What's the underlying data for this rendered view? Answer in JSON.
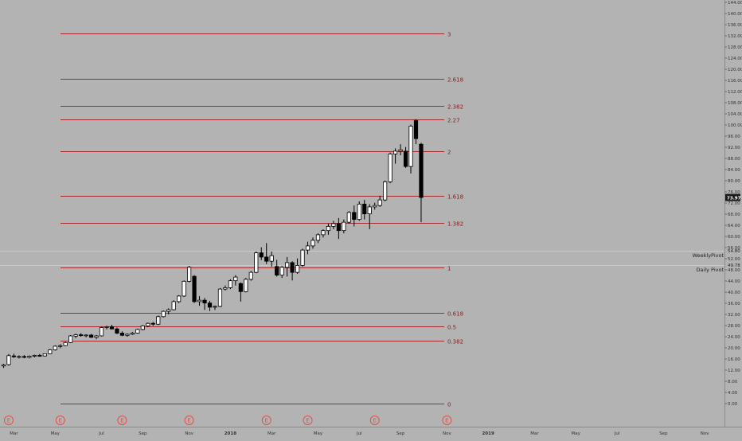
{
  "chart_data": {
    "type": "candlestick",
    "price_axis": {
      "min": 0,
      "max": 144,
      "ticks": [
        "0.00",
        "4.00",
        "8.00",
        "12.00",
        "16.00",
        "20.00",
        "24.00",
        "28.00",
        "32.00",
        "36.00",
        "40.00",
        "44.00",
        "48.00",
        "52.00",
        "56.00",
        "60.00",
        "64.00",
        "68.00",
        "72.00",
        "76.00",
        "80.00",
        "84.00",
        "88.00",
        "92.00",
        "96.00",
        "100.00",
        "104.00",
        "108.00",
        "112.00",
        "116.00",
        "120.00",
        "124.00",
        "128.00",
        "132.00",
        "136.00",
        "140.00",
        "144.00"
      ],
      "tick_values": [
        0,
        4,
        8,
        12,
        16,
        20,
        24,
        28,
        32,
        36,
        40,
        44,
        48,
        52,
        56,
        60,
        64,
        68,
        72,
        76,
        80,
        84,
        88,
        92,
        96,
        100,
        104,
        108,
        112,
        116,
        120,
        124,
        128,
        132,
        136,
        140,
        144
      ]
    },
    "time_axis": {
      "labels": [
        "Mar",
        "May",
        "Jul",
        "Sep",
        "Nov",
        "2018",
        "Mar",
        "May",
        "Jul",
        "Sep",
        "Nov",
        "2019",
        "Mar",
        "May",
        "Jul",
        "Sep",
        "Nov"
      ],
      "weeks": [
        2,
        10,
        19,
        27,
        36,
        44,
        52,
        61,
        69,
        77,
        86,
        94,
        103,
        111,
        119,
        128,
        136
      ]
    },
    "earnings_markers": {
      "label": "E",
      "weeks": [
        1,
        11,
        23,
        36,
        51,
        59,
        72,
        86
      ]
    },
    "fib_levels": [
      {
        "label": "0",
        "price": 0
      },
      {
        "label": "0.382",
        "price": 22.6
      },
      {
        "label": "0.5",
        "price": 27.6
      },
      {
        "label": "0.618",
        "price": 32.7
      },
      {
        "label": "1",
        "price": 48.8
      },
      {
        "label": "1.382",
        "price": 64.9
      },
      {
        "label": "1.618",
        "price": 74.7
      },
      {
        "label": "2",
        "price": 90.7
      },
      {
        "label": "2.27",
        "price": 101.9
      },
      {
        "label": "2.382",
        "price": 106.8
      },
      {
        "label": "2.618",
        "price": 116.7
      },
      {
        "label": "3",
        "price": 132.8
      }
    ],
    "pivots": [
      {
        "label": "WeeklyPivot",
        "value": "54.80",
        "price": 54.8
      },
      {
        "label": "Daily Pivot",
        "value": "49.78",
        "price": 49.78
      }
    ],
    "last_price": {
      "value": "73.97",
      "price": 73.97
    },
    "candles": [
      {
        "o": 13.5,
        "h": 14.3,
        "l": 12.8,
        "c": 13.9
      },
      {
        "o": 14.0,
        "h": 17.8,
        "l": 13.6,
        "c": 17.2
      },
      {
        "o": 17.1,
        "h": 17.9,
        "l": 16.4,
        "c": 16.8
      },
      {
        "o": 16.7,
        "h": 17.3,
        "l": 16.2,
        "c": 16.9
      },
      {
        "o": 16.9,
        "h": 17.4,
        "l": 16.3,
        "c": 16.6
      },
      {
        "o": 16.6,
        "h": 17.3,
        "l": 16.2,
        "c": 17.0
      },
      {
        "o": 17.0,
        "h": 17.6,
        "l": 16.6,
        "c": 17.3
      },
      {
        "o": 17.3,
        "h": 17.8,
        "l": 16.8,
        "c": 17.1
      },
      {
        "o": 17.1,
        "h": 18.0,
        "l": 16.9,
        "c": 17.9
      },
      {
        "o": 17.9,
        "h": 19.6,
        "l": 17.7,
        "c": 19.3
      },
      {
        "o": 19.3,
        "h": 20.9,
        "l": 19.0,
        "c": 20.6
      },
      {
        "o": 20.5,
        "h": 21.3,
        "l": 19.9,
        "c": 20.8
      },
      {
        "o": 20.8,
        "h": 22.2,
        "l": 20.6,
        "c": 21.9
      },
      {
        "o": 21.9,
        "h": 24.6,
        "l": 21.7,
        "c": 24.3
      },
      {
        "o": 24.2,
        "h": 25.1,
        "l": 23.5,
        "c": 24.7
      },
      {
        "o": 24.7,
        "h": 25.3,
        "l": 24.0,
        "c": 24.4
      },
      {
        "o": 24.4,
        "h": 24.9,
        "l": 23.8,
        "c": 24.6
      },
      {
        "o": 24.6,
        "h": 25.0,
        "l": 23.6,
        "c": 23.8
      },
      {
        "o": 23.8,
        "h": 24.6,
        "l": 23.1,
        "c": 24.3
      },
      {
        "o": 24.3,
        "h": 27.6,
        "l": 24.1,
        "c": 27.3
      },
      {
        "o": 27.3,
        "h": 28.0,
        "l": 26.6,
        "c": 27.6
      },
      {
        "o": 27.6,
        "h": 28.3,
        "l": 26.6,
        "c": 26.8
      },
      {
        "o": 26.8,
        "h": 27.3,
        "l": 24.9,
        "c": 25.3
      },
      {
        "o": 25.3,
        "h": 25.9,
        "l": 24.2,
        "c": 24.5
      },
      {
        "o": 24.5,
        "h": 25.2,
        "l": 24.0,
        "c": 24.9
      },
      {
        "o": 24.9,
        "h": 25.7,
        "l": 24.6,
        "c": 25.3
      },
      {
        "o": 25.3,
        "h": 26.9,
        "l": 25.1,
        "c": 26.6
      },
      {
        "o": 26.6,
        "h": 28.2,
        "l": 26.3,
        "c": 27.9
      },
      {
        "o": 27.9,
        "h": 29.1,
        "l": 27.5,
        "c": 28.8
      },
      {
        "o": 28.8,
        "h": 29.3,
        "l": 27.9,
        "c": 28.5
      },
      {
        "o": 28.5,
        "h": 31.6,
        "l": 28.2,
        "c": 31.2
      },
      {
        "o": 31.2,
        "h": 33.4,
        "l": 30.9,
        "c": 33.1
      },
      {
        "o": 33.1,
        "h": 34.2,
        "l": 32.0,
        "c": 33.7
      },
      {
        "o": 33.7,
        "h": 37.1,
        "l": 33.4,
        "c": 36.6
      },
      {
        "o": 36.6,
        "h": 38.9,
        "l": 36.1,
        "c": 38.6
      },
      {
        "o": 38.6,
        "h": 44.2,
        "l": 38.3,
        "c": 43.9
      },
      {
        "o": 43.9,
        "h": 49.4,
        "l": 43.5,
        "c": 48.9
      },
      {
        "o": 45.7,
        "h": 46.1,
        "l": 36.1,
        "c": 36.6
      },
      {
        "o": 36.6,
        "h": 38.6,
        "l": 35.1,
        "c": 37.1
      },
      {
        "o": 37.1,
        "h": 37.9,
        "l": 33.6,
        "c": 36.1
      },
      {
        "o": 36.1,
        "h": 36.9,
        "l": 33.2,
        "c": 34.6
      },
      {
        "o": 34.6,
        "h": 35.2,
        "l": 33.6,
        "c": 34.9
      },
      {
        "o": 34.9,
        "h": 41.5,
        "l": 34.6,
        "c": 41.1
      },
      {
        "o": 41.1,
        "h": 42.4,
        "l": 40.6,
        "c": 41.6
      },
      {
        "o": 41.6,
        "h": 44.6,
        "l": 41.1,
        "c": 44.1
      },
      {
        "o": 44.1,
        "h": 46.1,
        "l": 42.4,
        "c": 45.4
      },
      {
        "o": 43.1,
        "h": 43.5,
        "l": 36.6,
        "c": 40.2
      },
      {
        "o": 40.2,
        "h": 45.1,
        "l": 39.9,
        "c": 44.6
      },
      {
        "o": 44.6,
        "h": 47.6,
        "l": 44.1,
        "c": 47.1
      },
      {
        "o": 47.1,
        "h": 54.6,
        "l": 46.8,
        "c": 54.1
      },
      {
        "o": 54.1,
        "h": 56.1,
        "l": 51.5,
        "c": 52.6
      },
      {
        "o": 52.6,
        "h": 57.6,
        "l": 50.1,
        "c": 51.1
      },
      {
        "o": 51.1,
        "h": 54.6,
        "l": 49.1,
        "c": 53.1
      },
      {
        "o": 49.2,
        "h": 51.6,
        "l": 45.6,
        "c": 46.1
      },
      {
        "o": 46.1,
        "h": 49.4,
        "l": 45.1,
        "c": 48.9
      },
      {
        "o": 48.9,
        "h": 52.6,
        "l": 45.6,
        "c": 50.6
      },
      {
        "o": 50.6,
        "h": 51.1,
        "l": 44.2,
        "c": 47.1
      },
      {
        "o": 47.1,
        "h": 52.1,
        "l": 46.6,
        "c": 49.6
      },
      {
        "o": 49.6,
        "h": 55.6,
        "l": 49.1,
        "c": 55.1
      },
      {
        "o": 55.1,
        "h": 58.1,
        "l": 53.6,
        "c": 56.6
      },
      {
        "o": 56.6,
        "h": 59.6,
        "l": 55.6,
        "c": 58.6
      },
      {
        "o": 58.6,
        "h": 61.1,
        "l": 57.6,
        "c": 60.6
      },
      {
        "o": 60.6,
        "h": 62.6,
        "l": 59.6,
        "c": 62.1
      },
      {
        "o": 62.1,
        "h": 64.6,
        "l": 60.6,
        "c": 63.6
      },
      {
        "o": 63.6,
        "h": 65.6,
        "l": 62.6,
        "c": 64.6
      },
      {
        "o": 64.6,
        "h": 66.6,
        "l": 59.1,
        "c": 62.1
      },
      {
        "o": 62.1,
        "h": 66.1,
        "l": 61.1,
        "c": 65.1
      },
      {
        "o": 65.1,
        "h": 69.1,
        "l": 64.6,
        "c": 68.6
      },
      {
        "o": 68.6,
        "h": 71.1,
        "l": 63.6,
        "c": 66.1
      },
      {
        "o": 66.1,
        "h": 72.6,
        "l": 65.6,
        "c": 71.6
      },
      {
        "o": 71.6,
        "h": 73.1,
        "l": 66.1,
        "c": 68.1
      },
      {
        "o": 68.1,
        "h": 71.6,
        "l": 62.6,
        "c": 70.6
      },
      {
        "o": 70.6,
        "h": 72.1,
        "l": 69.6,
        "c": 71.1
      },
      {
        "o": 71.1,
        "h": 74.6,
        "l": 70.6,
        "c": 73.1
      },
      {
        "o": 73.1,
        "h": 80.1,
        "l": 72.6,
        "c": 79.6
      },
      {
        "o": 79.6,
        "h": 90.1,
        "l": 79.1,
        "c": 89.6
      },
      {
        "o": 89.6,
        "h": 91.6,
        "l": 86.1,
        "c": 90.6
      },
      {
        "o": 90.6,
        "h": 93.1,
        "l": 89.1,
        "c": 91.1
      },
      {
        "o": 90.6,
        "h": 92.1,
        "l": 84.6,
        "c": 85.1
      },
      {
        "o": 85.1,
        "h": 100.1,
        "l": 82.6,
        "c": 99.6
      },
      {
        "o": 101.6,
        "h": 102.1,
        "l": 93.1,
        "c": 95.1
      },
      {
        "o": 93.1,
        "h": 93.6,
        "l": 65.1,
        "c": 73.97
      }
    ]
  }
}
